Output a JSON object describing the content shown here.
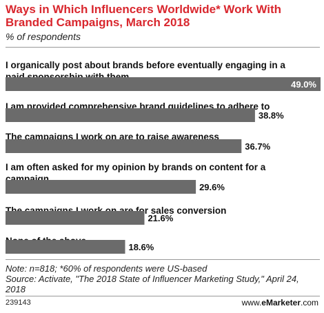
{
  "header": {
    "title": "Ways in Which Influencers Worldwide* Work With Branded Campaigns, March 2018",
    "subtitle": "% of respondents"
  },
  "chart_data": {
    "type": "bar",
    "orientation": "horizontal",
    "categories": [
      "I organically post about brands before eventually engaging in a paid sponsorship with them",
      "I am provided comprehensive brand guidelines to adhere to",
      "The campaigns I work on are to raise awareness",
      "I am often asked for my opinion by brands on content for a campaign",
      "The campaigns I work on are for sales conversion",
      "None of the above"
    ],
    "values": [
      49.0,
      38.8,
      36.7,
      29.6,
      21.6,
      18.6
    ],
    "value_labels": [
      "49.0%",
      "38.8%",
      "36.7%",
      "29.6%",
      "21.6%",
      "18.6%"
    ],
    "xlim": [
      0,
      49.0
    ],
    "bar_color": "#6b6b6b",
    "label_inside_color": "#ffffff",
    "grid": false
  },
  "footer": {
    "note": "Note: n=818; *60% of respondents were US-based",
    "source": "Source: Activate, \"The 2018 State of Influencer Marketing Study,\" April 24, 2018",
    "id": "239143",
    "brand_prefix": "www.",
    "brand_name": "eMarketer",
    "brand_suffix": ".com"
  }
}
